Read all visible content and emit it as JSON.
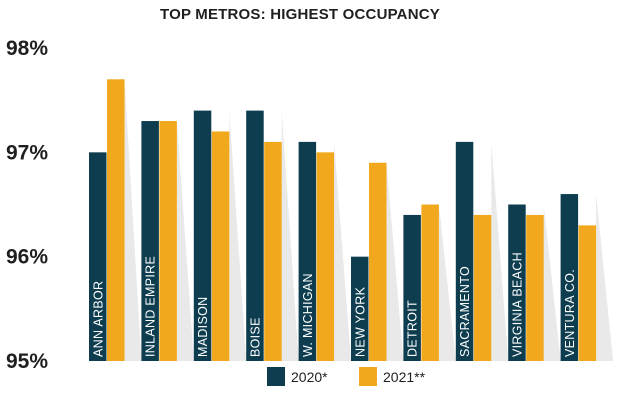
{
  "chart_data": {
    "type": "bar",
    "title": "TOP METROS: HIGHEST OCCUPANCY",
    "categories": [
      "ANN ARBOR",
      "INLAND EMPIRE",
      "MADISON",
      "BOISE",
      "W. MICHIGAN",
      "NEW YORK",
      "DETROIT",
      "SACRAMENTO",
      "VIRGINIA BEACH",
      "VENTURA CO."
    ],
    "series": [
      {
        "name": "2020*",
        "color": "#0d3d4f",
        "values": [
          97.0,
          97.3,
          97.4,
          97.4,
          97.1,
          96.0,
          96.4,
          97.1,
          96.5,
          96.6
        ]
      },
      {
        "name": "2021**",
        "color": "#f2a81d",
        "values": [
          97.7,
          97.3,
          97.2,
          97.1,
          97.0,
          96.9,
          96.5,
          96.4,
          96.4,
          96.3
        ]
      }
    ],
    "ylim": [
      95,
      98
    ],
    "yticks": [
      95,
      96,
      97,
      98
    ],
    "ytick_labels": [
      "95%",
      "96%",
      "97%",
      "98%"
    ],
    "legend_position": "bottom",
    "grid": false
  }
}
